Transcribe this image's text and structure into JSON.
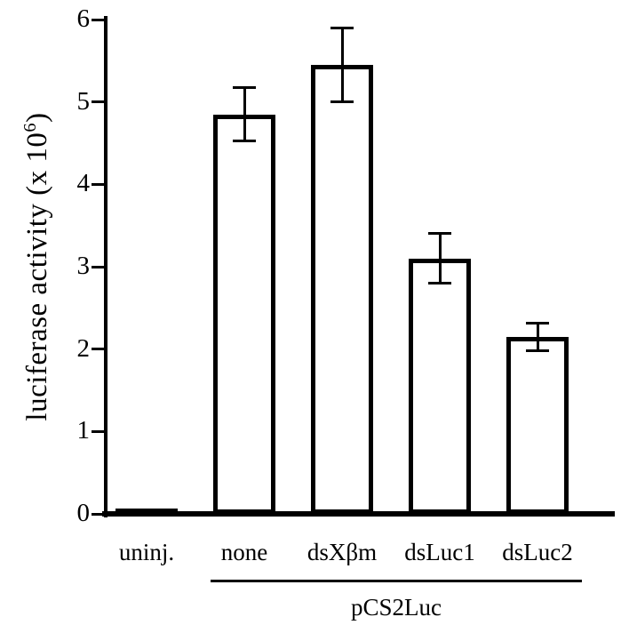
{
  "chart_data": {
    "type": "bar",
    "title": "",
    "ylabel": {
      "pre": "luciferase activity  (x 10",
      "sup": "6",
      "post": ")"
    },
    "ylabel_text": "luciferase activity (x 10^6)",
    "ylim": [
      0,
      6
    ],
    "yticks": [
      0,
      1,
      2,
      3,
      4,
      5,
      6
    ],
    "categories": [
      "uninj.",
      "none",
      "dsXβm",
      "dsLuc1",
      "dsLuc2"
    ],
    "values": [
      0.02,
      4.85,
      5.45,
      3.1,
      2.15
    ],
    "errors": [
      0,
      0.33,
      0.45,
      0.31,
      0.17
    ],
    "group": {
      "label": "pCS2Luc",
      "from": 1,
      "to": 4
    },
    "bar_fill": "#ffffff",
    "bar_border": "#000000",
    "axis_color": "#000000",
    "background": "#ffffff",
    "legend": "none",
    "grid": false
  }
}
